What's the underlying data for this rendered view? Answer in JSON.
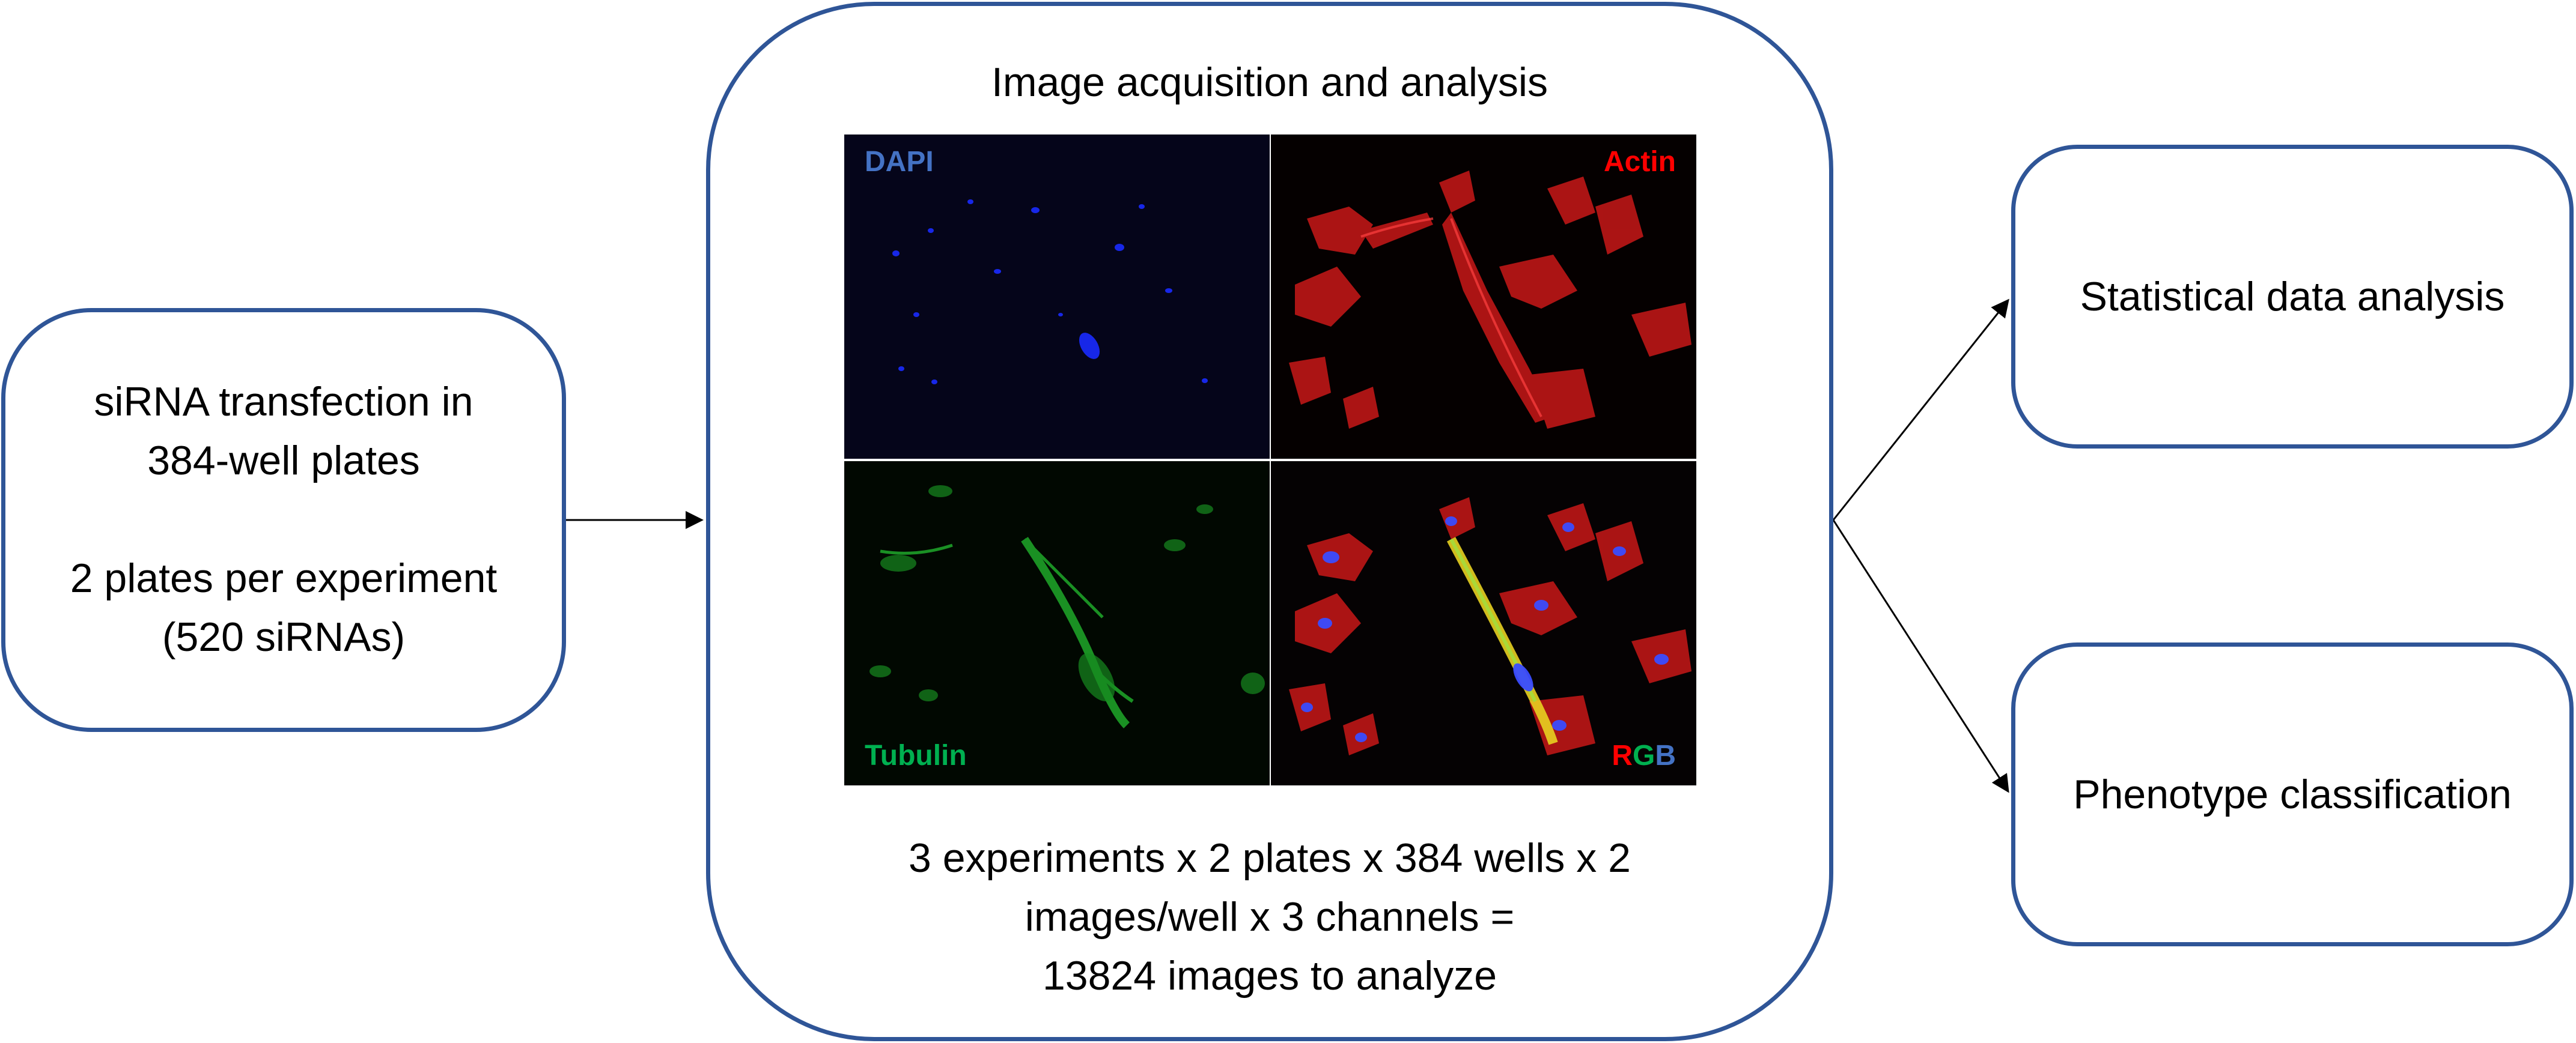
{
  "left_box": {
    "line1": "siRNA transfection in",
    "line2": "384-well plates",
    "line3": "2 plates per experiment",
    "line4": "(520 siRNAs)"
  },
  "middle_box": {
    "title": "Image acquisition and analysis",
    "panels": {
      "dapi_label": "DAPI",
      "actin_label": "Actin",
      "tubulin_label": "Tubulin",
      "rgb_label_r": "R",
      "rgb_label_g": "G",
      "rgb_label_b": "B"
    },
    "caption_line1": "3 experiments x 2 plates x 384 wells x 2",
    "caption_line2": "images/well x 3 channels =",
    "caption_line3": "13824 images to analyze"
  },
  "right_top_box": {
    "title": "Statistical data analysis"
  },
  "right_bottom_box": {
    "title": "Phenotype classification"
  },
  "colors": {
    "box_border": "#2f5597",
    "dapi": "#4472c4",
    "actin": "#ff0000",
    "tubulin": "#00b050",
    "arrow": "#000000"
  }
}
